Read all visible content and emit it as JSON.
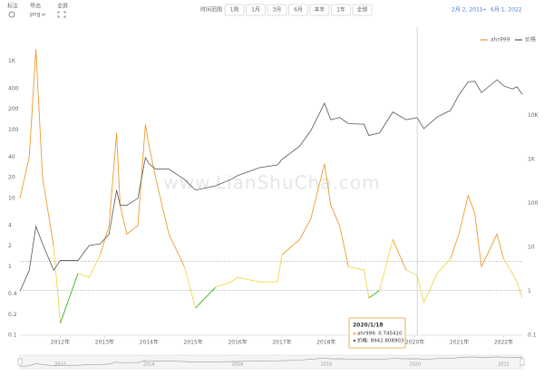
{
  "toolbar": {
    "annotate": "标注",
    "export": "导出",
    "export_format": "png",
    "fullscreen": "全屏",
    "range_label": "时间范围",
    "range_buttons": [
      "1周",
      "1月",
      "3月",
      "6月",
      "本年",
      "1年",
      "全部"
    ],
    "date_from": "2月 2, 2011",
    "date_arrow": "→",
    "date_to": "6月 1, 2022"
  },
  "watermark": "www.LianShuCha.com",
  "chart_data": {
    "type": "line",
    "log_scale": true,
    "x": [
      2011.09,
      2011.3,
      2011.45,
      2011.6,
      2011.85,
      2012.0,
      2012.4,
      2012.65,
      2012.9,
      2013.1,
      2013.27,
      2013.35,
      2013.5,
      2013.75,
      2013.92,
      2014.0,
      2014.15,
      2014.45,
      2014.8,
      2015.05,
      2015.5,
      2015.85,
      2016.0,
      2016.5,
      2016.9,
      2017.0,
      2017.4,
      2017.65,
      2017.96,
      2018.1,
      2018.3,
      2018.5,
      2018.85,
      2018.96,
      2019.2,
      2019.5,
      2019.8,
      2020.05,
      2020.2,
      2020.5,
      2020.8,
      2020.99,
      2021.2,
      2021.35,
      2021.5,
      2021.85,
      2022.0,
      2022.2,
      2022.3,
      2022.42
    ],
    "series": [
      {
        "name": "ahr999",
        "color": "#ee9a2e",
        "bands": [
          {
            "max": 0.45,
            "color": "#33b51d"
          },
          {
            "max": 1.2,
            "color": "#f1d64a"
          },
          {
            "color": "#ee9a2e"
          }
        ],
        "values": [
          10,
          40,
          1500,
          20,
          2,
          0.15,
          0.8,
          0.7,
          1.5,
          4,
          90,
          8,
          3,
          4,
          120,
          60,
          20,
          3,
          1,
          0.25,
          0.5,
          0.6,
          0.7,
          0.6,
          0.6,
          1.5,
          2.5,
          5,
          32,
          8,
          4,
          1,
          0.9,
          0.35,
          0.45,
          2.5,
          0.9,
          0.75,
          0.3,
          0.8,
          1.3,
          3,
          11,
          6,
          1,
          3,
          1.3,
          0.8,
          0.6,
          0.35
        ]
      },
      {
        "name": "价格",
        "color": "#555555",
        "axis": "y2",
        "values": [
          1,
          3,
          30,
          12,
          3,
          5,
          5,
          11,
          12,
          20,
          200,
          90,
          90,
          130,
          1100,
          800,
          600,
          600,
          350,
          200,
          250,
          350,
          430,
          650,
          750,
          1000,
          2000,
          4500,
          19000,
          8000,
          9000,
          6500,
          6300,
          3500,
          4000,
          12000,
          8000,
          8900,
          5000,
          9200,
          13000,
          29000,
          58000,
          60000,
          33000,
          65000,
          47000,
          40000,
          45000,
          30000
        ]
      }
    ],
    "xlim": [
      2011.09,
      2022.42
    ],
    "xticks": [
      {
        "value": 2012,
        "label": "2012年"
      },
      {
        "value": 2013,
        "label": "2013年"
      },
      {
        "value": 2014,
        "label": "2014年"
      },
      {
        "value": 2015,
        "label": "2015年"
      },
      {
        "value": 2016,
        "label": "2016年"
      },
      {
        "value": 2017,
        "label": "2017年"
      },
      {
        "value": 2018,
        "label": "2018年"
      },
      {
        "value": 2019,
        "label": "2019年"
      },
      {
        "value": 2020,
        "label": "2020年"
      },
      {
        "value": 2021,
        "label": "2021年"
      },
      {
        "value": 2022,
        "label": "2022年"
      }
    ],
    "ylim": [
      0.1,
      2000
    ],
    "yticks": [
      0.1,
      0.2,
      0.4,
      1,
      2,
      4,
      10,
      20,
      40,
      100,
      200,
      400,
      {
        "value": 1000,
        "label": "1K"
      }
    ],
    "y2lim": [
      0.1,
      500000
    ],
    "y2ticks": [
      0.1,
      1,
      10,
      100,
      {
        "value": 1000,
        "label": "1K"
      },
      {
        "value": 10000,
        "label": "10K"
      }
    ],
    "reference_lines": [
      1.2,
      0.45
    ],
    "legend": "top-right",
    "crosshair_x": 2020.05,
    "tooltip": {
      "title": "2020/1/18",
      "lines": [
        "ahr999: 0.745410",
        "价格: 8942.808903"
      ]
    },
    "navigator_ticks": [
      2012,
      2014,
      2016,
      2018,
      2020,
      2022
    ]
  }
}
